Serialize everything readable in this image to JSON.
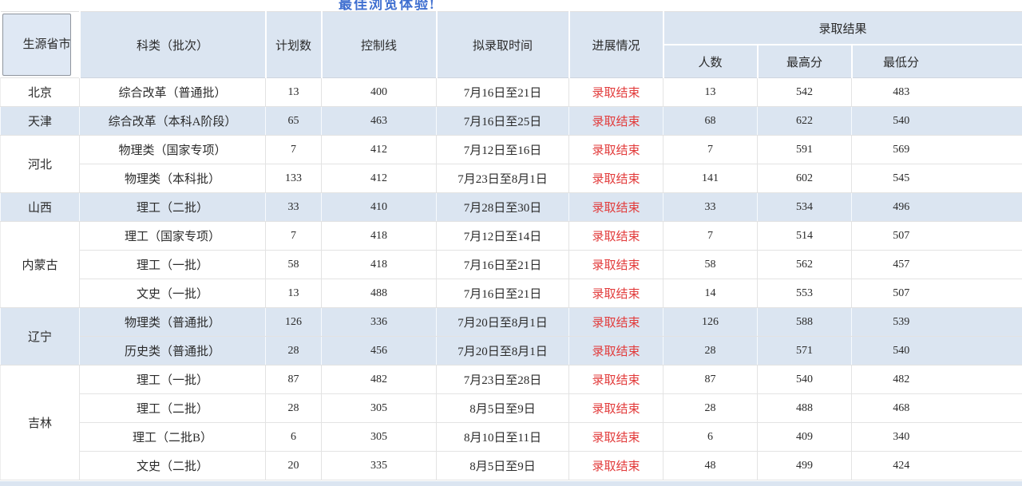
{
  "page": {
    "top_link_label": "最佳浏览体验!"
  },
  "colors": {
    "header_bg": "#dbe5f1",
    "stripe_bg": "#dbe5f1",
    "progress_red": "#e23b3b",
    "link_blue": "#3f6fd0",
    "border_gray": "#e3e3e3"
  },
  "table": {
    "headers": {
      "province": "生源省市",
      "category": "科类（批次）",
      "plan": "计划数",
      "control": "控制线",
      "time": "拟录取时间",
      "progress": "进展情况",
      "result_group": "录取结果"
    },
    "sub_headers": [
      "人数",
      "最高分",
      "最低分"
    ],
    "rows": [
      {
        "province": "北京",
        "rowspan": 1,
        "stripe": false,
        "category": "综合改革（普通批）",
        "plan": "13",
        "control": "400",
        "time": "7月16日至21日",
        "progress": "录取结束",
        "count": "13",
        "max": "542",
        "min": "483"
      },
      {
        "province": "天津",
        "rowspan": 1,
        "stripe": true,
        "category": "综合改革（本科A阶段）",
        "plan": "65",
        "control": "463",
        "time": "7月16日至25日",
        "progress": "录取结束",
        "count": "68",
        "max": "622",
        "min": "540"
      },
      {
        "province": "河北",
        "rowspan": 2,
        "stripe": false,
        "category": "物理类（国家专项）",
        "plan": "7",
        "control": "412",
        "time": "7月12日至16日",
        "progress": "录取结束",
        "count": "7",
        "max": "591",
        "min": "569"
      },
      {
        "stripe": false,
        "category": "物理类（本科批）",
        "plan": "133",
        "control": "412",
        "time": "7月23日至8月1日",
        "progress": "录取结束",
        "count": "141",
        "max": "602",
        "min": "545"
      },
      {
        "province": "山西",
        "rowspan": 1,
        "stripe": true,
        "category": "理工（二批）",
        "plan": "33",
        "control": "410",
        "time": "7月28日至30日",
        "progress": "录取结束",
        "count": "33",
        "max": "534",
        "min": "496"
      },
      {
        "province": "内蒙古",
        "rowspan": 3,
        "stripe": false,
        "category": "理工（国家专项）",
        "plan": "7",
        "control": "418",
        "time": "7月12日至14日",
        "progress": "录取结束",
        "count": "7",
        "max": "514",
        "min": "507"
      },
      {
        "stripe": false,
        "category": "理工（一批）",
        "plan": "58",
        "control": "418",
        "time": "7月16日至21日",
        "progress": "录取结束",
        "count": "58",
        "max": "562",
        "min": "457"
      },
      {
        "stripe": false,
        "category": "文史（一批）",
        "plan": "13",
        "control": "488",
        "time": "7月16日至21日",
        "progress": "录取结束",
        "count": "14",
        "max": "553",
        "min": "507"
      },
      {
        "province": "辽宁",
        "rowspan": 2,
        "stripe": true,
        "category": "物理类（普通批）",
        "plan": "126",
        "control": "336",
        "time": "7月20日至8月1日",
        "progress": "录取结束",
        "count": "126",
        "max": "588",
        "min": "539"
      },
      {
        "stripe": true,
        "category": "历史类（普通批）",
        "plan": "28",
        "control": "456",
        "time": "7月20日至8月1日",
        "progress": "录取结束",
        "count": "28",
        "max": "571",
        "min": "540"
      },
      {
        "province": "吉林",
        "rowspan": 4,
        "stripe": false,
        "category": "理工（一批）",
        "plan": "87",
        "control": "482",
        "time": "7月23日至28日",
        "progress": "录取结束",
        "count": "87",
        "max": "540",
        "min": "482"
      },
      {
        "stripe": false,
        "category": "理工（二批）",
        "plan": "28",
        "control": "305",
        "time": "8月5日至9日",
        "progress": "录取结束",
        "count": "28",
        "max": "488",
        "min": "468"
      },
      {
        "stripe": false,
        "category": "理工（二批B）",
        "plan": "6",
        "control": "305",
        "time": "8月10日至11日",
        "progress": "录取结束",
        "count": "6",
        "max": "409",
        "min": "340"
      },
      {
        "stripe": false,
        "category": "文史（二批）",
        "plan": "20",
        "control": "335",
        "time": "8月5日至9日",
        "progress": "录取结束",
        "count": "48",
        "max": "499",
        "min": "424"
      }
    ]
  }
}
